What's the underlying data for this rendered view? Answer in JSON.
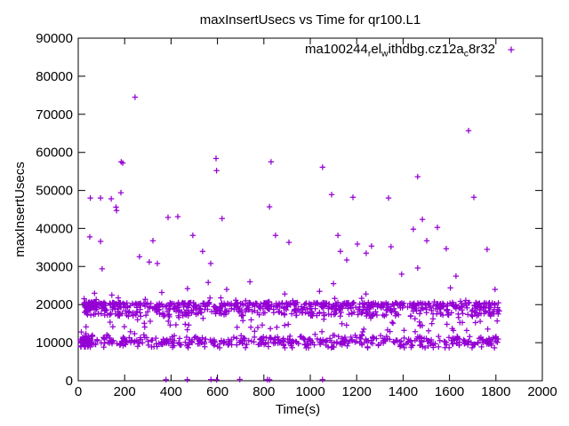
{
  "window": {
    "background": "#ffffff"
  },
  "chart_data": {
    "type": "scatter",
    "title": "maxInsertUsecs vs Time for qr100.L1",
    "xlabel": "Time(s)",
    "ylabel": "maxInsertUsecs",
    "xlim": [
      0,
      2000
    ],
    "ylim": [
      0,
      90000
    ],
    "xticks": [
      0,
      200,
      400,
      600,
      800,
      1000,
      1200,
      1400,
      1600,
      1800,
      2000
    ],
    "yticks": [
      0,
      10000,
      20000,
      30000,
      40000,
      50000,
      60000,
      70000,
      80000,
      90000
    ],
    "grid": false,
    "axis_color": "#000000",
    "marker": "plus",
    "marker_color": "#9400D3",
    "legend": {
      "position": "top-right-inside",
      "label_plain": "ma100244_rel_withdbg.cz12a_c8r32",
      "label_segments": [
        {
          "text": "ma100244"
        },
        {
          "sub": "r"
        },
        {
          "text": "el"
        },
        {
          "sub": "w"
        },
        {
          "text": "ithdbg.cz12a"
        },
        {
          "sub": "c"
        },
        {
          "text": "8r32"
        }
      ]
    },
    "series": [
      {
        "name": "ma100244_rel_withdbg.cz12a_c8r32",
        "outlier_points": [
          [
            245,
            74500
          ],
          [
            185,
            57500
          ],
          [
            192,
            57200
          ],
          [
            594,
            58400
          ],
          [
            596,
            55200
          ],
          [
            831,
            57500
          ],
          [
            1682,
            65700
          ],
          [
            1053,
            56100
          ],
          [
            1463,
            53600
          ],
          [
            52,
            48000
          ],
          [
            96,
            48000
          ],
          [
            142,
            47800
          ],
          [
            163,
            45600
          ],
          [
            184,
            49400
          ],
          [
            165,
            44700
          ],
          [
            824,
            45700
          ],
          [
            1092,
            48900
          ],
          [
            1184,
            48200
          ],
          [
            1337,
            48000
          ],
          [
            1705,
            48200
          ],
          [
            387,
            42900
          ],
          [
            429,
            43100
          ],
          [
            620,
            42600
          ],
          [
            1483,
            42400
          ],
          [
            1444,
            39800
          ],
          [
            1548,
            40300
          ],
          [
            50,
            37800
          ],
          [
            96,
            36600
          ],
          [
            322,
            36800
          ],
          [
            494,
            38200
          ],
          [
            850,
            38200
          ],
          [
            1119,
            38200
          ],
          [
            908,
            36350
          ],
          [
            1502,
            36800
          ],
          [
            536,
            34000
          ],
          [
            1203,
            35900
          ],
          [
            1264,
            35400
          ],
          [
            1348,
            35200
          ],
          [
            1130,
            34000
          ],
          [
            1241,
            33500
          ],
          [
            1586,
            34700
          ],
          [
            1762,
            34500
          ],
          [
            264,
            32600
          ],
          [
            306,
            31200
          ],
          [
            341,
            30800
          ],
          [
            571,
            30800
          ],
          [
            1157,
            31700
          ],
          [
            103,
            29400
          ],
          [
            1463,
            29600
          ],
          [
            1394,
            28000
          ],
          [
            1628,
            27500
          ],
          [
            471,
            24200
          ],
          [
            70,
            23000
          ],
          [
            145,
            22500
          ],
          [
            360,
            23200
          ],
          [
            560,
            25800
          ],
          [
            640,
            24000
          ],
          [
            740,
            26000
          ],
          [
            890,
            22800
          ],
          [
            1040,
            23500
          ],
          [
            1240,
            22800
          ],
          [
            1604,
            24400
          ],
          [
            1796,
            24000
          ],
          [
            1100,
            25500
          ],
          [
            149,
            14200
          ],
          [
            199,
            14200
          ],
          [
            470,
            13400
          ],
          [
            760,
            13000
          ],
          [
            905,
            14800
          ],
          [
            1050,
            12900
          ],
          [
            1510,
            13100
          ],
          [
            1617,
            13200
          ],
          [
            1655,
            15300
          ],
          [
            1674,
            13200
          ],
          [
            1732,
            15600
          ]
        ],
        "zero_points": [
          [
            378,
            300
          ],
          [
            470,
            280
          ],
          [
            572,
            320
          ],
          [
            596,
            260
          ],
          [
            696,
            340
          ],
          [
            815,
            300
          ],
          [
            824,
            260
          ],
          [
            1053,
            300
          ]
        ],
        "bands": [
          {
            "kind": "top-weighted",
            "x_range": [
              25,
              1815
            ],
            "count": 800,
            "y_base": 20450,
            "y_fall": 3500,
            "power": 1.7,
            "jitter": 260,
            "up_frac": 0.02,
            "up_range": [
              20500,
              21900
            ],
            "low_frac": 0.05,
            "low_range": [
              14300,
              17000
            ]
          },
          {
            "kind": "gaussian",
            "x_range": [
              8,
              1815
            ],
            "count": 480,
            "y_center": 10250,
            "y_std": 750,
            "y_clip": [
              8650,
              12600
            ],
            "up_frac": 0.03,
            "up_range": [
              12700,
              14200
            ]
          },
          {
            "kind": "uniform",
            "x_range": [
              28,
              78
            ],
            "count": 40,
            "y_range": [
              18900,
              20700
            ]
          },
          {
            "kind": "gaussian",
            "x_range": [
              8,
              62
            ],
            "count": 55,
            "y_center": 10300,
            "y_std": 900,
            "y_clip": [
              8900,
              12400
            ],
            "up_frac": 0,
            "up_range": [
              0,
              0
            ]
          }
        ],
        "prng_seed": 42
      }
    ]
  }
}
